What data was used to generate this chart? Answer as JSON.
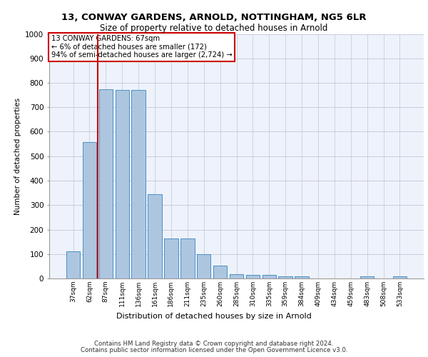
{
  "title1": "13, CONWAY GARDENS, ARNOLD, NOTTINGHAM, NG5 6LR",
  "title2": "Size of property relative to detached houses in Arnold",
  "xlabel": "Distribution of detached houses by size in Arnold",
  "ylabel": "Number of detached properties",
  "bar_labels": [
    "37sqm",
    "62sqm",
    "87sqm",
    "111sqm",
    "136sqm",
    "161sqm",
    "186sqm",
    "211sqm",
    "235sqm",
    "260sqm",
    "285sqm",
    "310sqm",
    "335sqm",
    "359sqm",
    "384sqm",
    "409sqm",
    "434sqm",
    "459sqm",
    "483sqm",
    "508sqm",
    "533sqm"
  ],
  "bar_values": [
    112,
    558,
    775,
    770,
    770,
    345,
    163,
    163,
    98,
    52,
    18,
    15,
    15,
    10,
    10,
    0,
    0,
    0,
    10,
    0,
    10
  ],
  "bar_color": "#adc6e0",
  "bar_edge_color": "#4a90c4",
  "annotation_text": "13 CONWAY GARDENS: 67sqm\n← 6% of detached houses are smaller (172)\n94% of semi-detached houses are larger (2,724) →",
  "annotation_box_color": "#cc0000",
  "vline_color": "#cc0000",
  "vline_x": 1.5,
  "ylim": [
    0,
    1000
  ],
  "yticks": [
    0,
    100,
    200,
    300,
    400,
    500,
    600,
    700,
    800,
    900,
    1000
  ],
  "footer1": "Contains HM Land Registry data © Crown copyright and database right 2024.",
  "footer2": "Contains public sector information licensed under the Open Government Licence v3.0.",
  "bg_color": "#eef2fb",
  "grid_color": "#c0c8d8"
}
